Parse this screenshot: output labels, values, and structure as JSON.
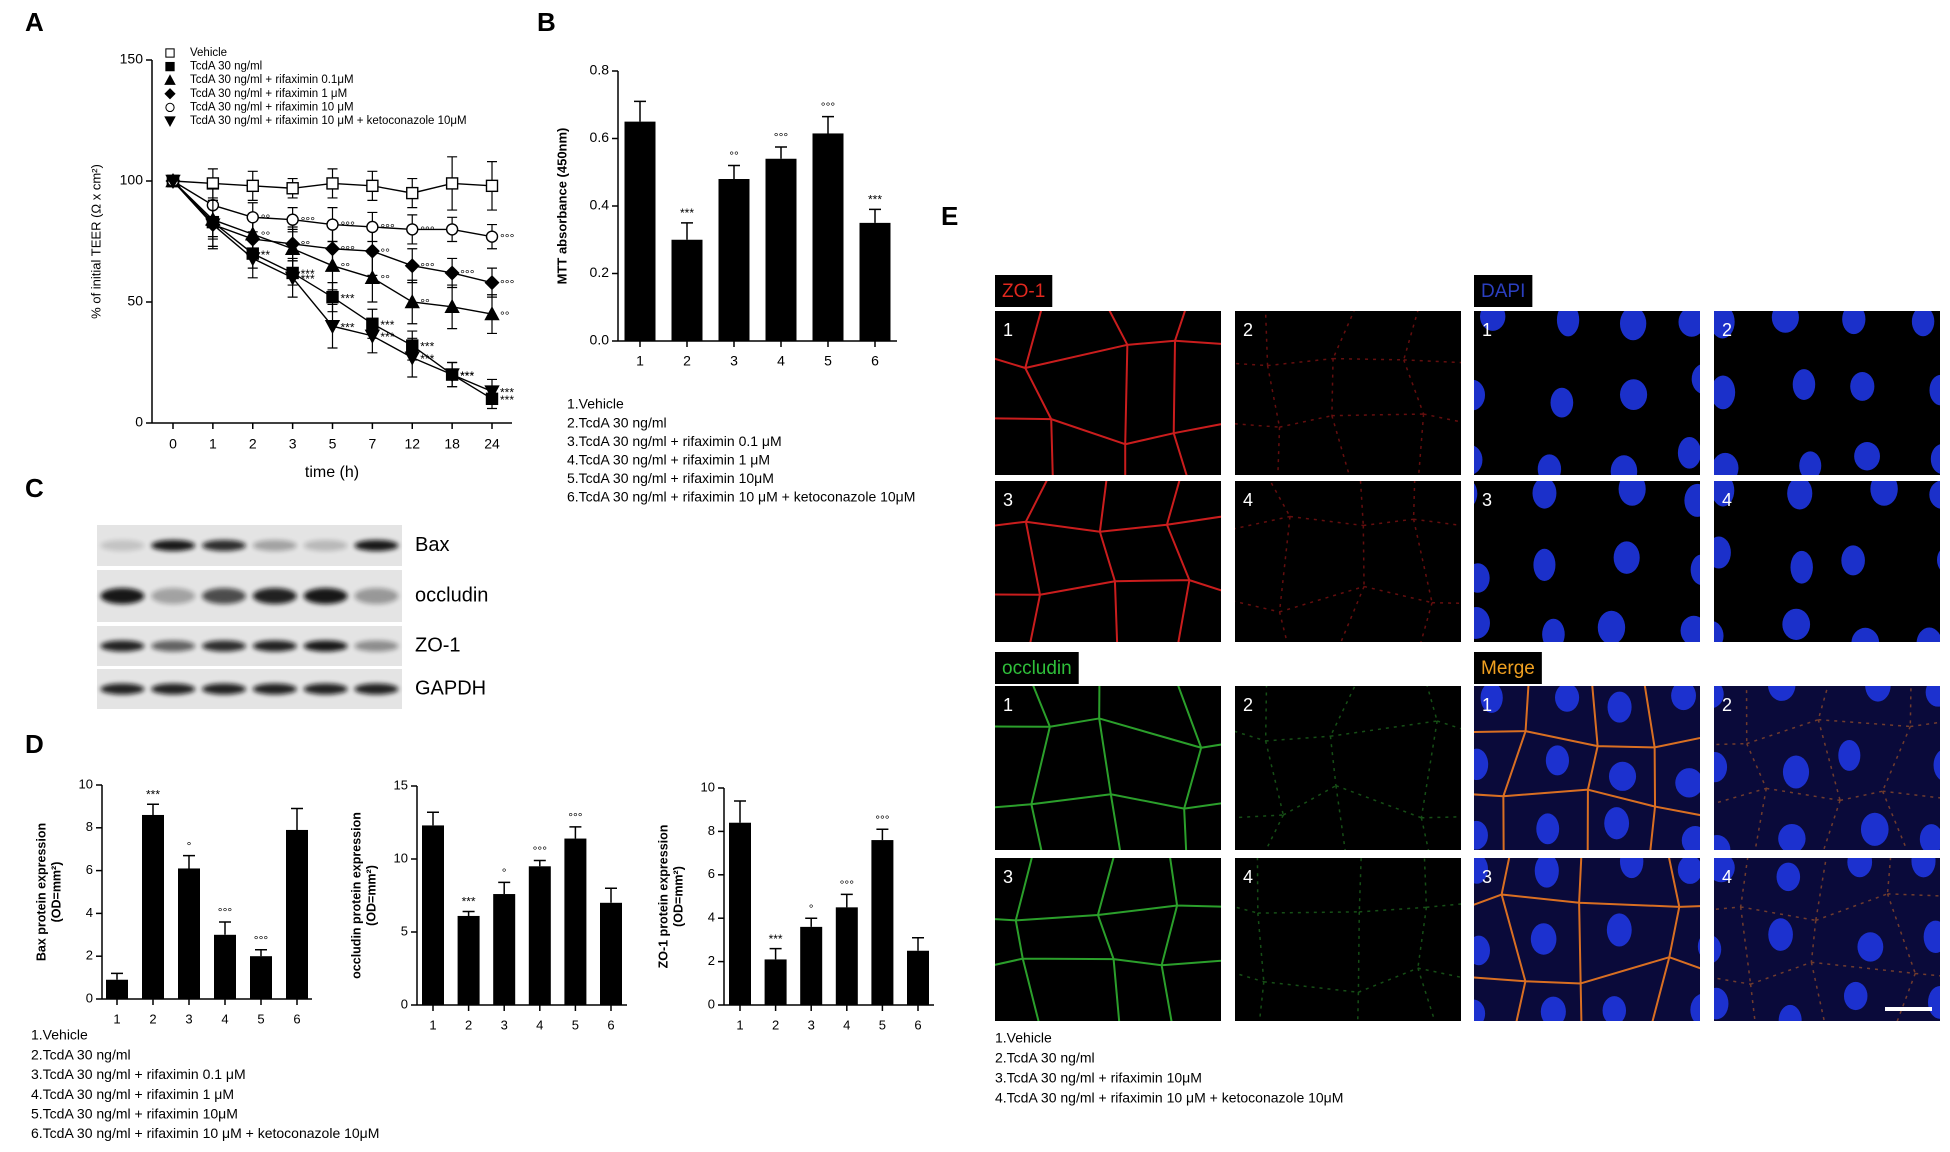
{
  "figure": {
    "panel_labels": [
      "A",
      "B",
      "C",
      "D",
      "E"
    ],
    "blot": {
      "labels": [
        "Bax",
        "occludin",
        "ZO-1",
        "GAPDH"
      ]
    },
    "micrographs": {
      "channels": [
        "ZO-1",
        "DAPI",
        "occludin",
        "Merge"
      ],
      "tile_labels": [
        "1",
        "2",
        "3",
        "4"
      ],
      "notes": [
        "1.Vehicle",
        "2.TcdA 30 ng/ml",
        "3.TcdA 30 ng/ml + rifaximin 10μM",
        "4.TcdA 30 ng/ml + rifaximin 10 μM + ketoconazole  10μM"
      ]
    },
    "d_notes": [
      "1.Vehicle",
      "2.TcdA 30 ng/ml",
      "3.TcdA 30 ng/ml + rifaximin 0.1 μM",
      "4.TcdA 30 ng/ml + rifaximin 1 μM",
      "5.TcdA 30 ng/ml + rifaximin 10μM",
      "6.TcdA 30 ng/ml + rifaximin 10 μM + ketoconazole  10μM"
    ]
  },
  "chart_data": [
    {
      "type": "line",
      "xlabel": "time (h)",
      "ylabel": "% of initial TEER (Ω x cm²)",
      "categories": [
        "0",
        "1",
        "2",
        "3",
        "5",
        "7",
        "12",
        "18",
        "24"
      ],
      "ylim": [
        0,
        150
      ],
      "yticks": [
        0,
        50,
        100,
        150
      ],
      "legend": "top-left",
      "series": [
        {
          "name": "Vehicle",
          "color": "#000000",
          "marker": "square-open",
          "values": [
            100,
            99,
            98,
            97,
            99,
            98,
            95,
            99,
            98
          ],
          "errors": [
            0,
            6,
            6,
            4,
            6,
            6,
            6,
            11,
            10
          ],
          "annotations": [
            null,
            null,
            null,
            null,
            null,
            null,
            null,
            null,
            null
          ]
        },
        {
          "name": "TcdA 30 ng/ml",
          "color": "#000000",
          "marker": "square",
          "values": [
            100,
            83,
            70,
            62,
            52,
            41,
            32,
            20,
            10
          ],
          "errors": [
            0,
            6,
            6,
            5,
            6,
            6,
            6,
            5,
            4
          ],
          "annotations": [
            null,
            null,
            "**",
            "***",
            "***",
            "***",
            "***",
            "***",
            "***"
          ]
        },
        {
          "name": "TcdA 30 ng/ml + rifaximin  0.1μM",
          "color": "#000000",
          "marker": "triangle",
          "values": [
            100,
            84,
            78,
            72,
            65,
            60,
            50,
            48,
            45
          ],
          "errors": [
            0,
            8,
            8,
            8,
            10,
            10,
            9,
            9,
            8
          ],
          "annotations": [
            null,
            null,
            "°°",
            null,
            "°°",
            "°°",
            "°°",
            null,
            "°°"
          ]
        },
        {
          "name": "TcdA 30 ng/ml + rifaximin  1 μM",
          "color": "#000000",
          "marker": "diamond",
          "values": [
            100,
            82,
            76,
            74,
            72,
            71,
            65,
            62,
            58
          ],
          "errors": [
            0,
            9,
            8,
            7,
            9,
            10,
            7,
            6,
            6
          ],
          "annotations": [
            null,
            null,
            null,
            "°°",
            "°°°",
            "°°",
            "°°°",
            "°°°",
            "°°°"
          ]
        },
        {
          "name": "TcdA 30 ng/ml + rifaximin  10 μM",
          "color": "#000000",
          "marker": "circle-open",
          "values": [
            100,
            90,
            85,
            84,
            82,
            81,
            80,
            80,
            77
          ],
          "errors": [
            0,
            7,
            6,
            5,
            7,
            6,
            6,
            5,
            5
          ],
          "annotations": [
            null,
            null,
            "°°",
            "°°°",
            "°°°",
            "°°°",
            "°°°",
            null,
            "°°°"
          ]
        },
        {
          "name": "TcdA 30 ng/ml + rifaximin 10 μM + ketoconazole 10μM",
          "color": "#000000",
          "marker": "triangle-down",
          "values": [
            100,
            82,
            68,
            60,
            40,
            36,
            27,
            20,
            13
          ],
          "errors": [
            0,
            10,
            8,
            8,
            9,
            7,
            8,
            5,
            5
          ],
          "annotations": [
            null,
            null,
            null,
            "***",
            "***",
            "***",
            "***",
            "***",
            "***"
          ]
        }
      ]
    },
    {
      "type": "bar",
      "ylabel": "MTT absorbance (450nm)",
      "color": "#000000",
      "categories": [
        "1",
        "2",
        "3",
        "4",
        "5",
        "6"
      ],
      "values": [
        0.65,
        0.3,
        0.48,
        0.54,
        0.615,
        0.35
      ],
      "errors": [
        0.06,
        0.05,
        0.04,
        0.035,
        0.05,
        0.04
      ],
      "annotations": [
        null,
        "***",
        "°°",
        "°°°",
        "°°°",
        "***"
      ],
      "ylim": [
        0,
        0.8
      ],
      "yticks": [
        {
          "value": 0,
          "label": "0.0"
        },
        0.2,
        0.4,
        0.6,
        0.8
      ],
      "notes": [
        "1.Vehicle",
        "2.TcdA 30 ng/ml",
        "3.TcdA 30 ng/ml + rifaximin 0.1 μM",
        "4.TcdA 30 ng/ml + rifaximin 1 μM",
        "5.TcdA 30 ng/ml + rifaximin 10μM",
        "6.TcdA 30 ng/ml + rifaximin 10 μM + ketoconazole  10μM"
      ]
    },
    {
      "type": "bar",
      "ylabel": "Bax protein expression",
      "ylabel_unit": "(OD=mm²)",
      "color": "#000000",
      "categories": [
        "1",
        "2",
        "3",
        "4",
        "5",
        "6"
      ],
      "values": [
        0.9,
        8.6,
        6.1,
        3.0,
        2.0,
        7.9
      ],
      "errors": [
        0.3,
        0.5,
        0.6,
        0.6,
        0.3,
        1.0
      ],
      "annotations": [
        null,
        "***",
        "°",
        "°°°",
        "°°°",
        null
      ],
      "ylim": [
        0,
        10
      ],
      "yticks": [
        0,
        2,
        4,
        6,
        8,
        10
      ]
    },
    {
      "type": "bar",
      "ylabel": "occludin protein expression",
      "ylabel_unit": "(OD=mm²)",
      "color": "#000000",
      "categories": [
        "1",
        "2",
        "3",
        "4",
        "5",
        "6"
      ],
      "values": [
        12.3,
        6.1,
        7.6,
        9.5,
        11.4,
        7.0
      ],
      "errors": [
        0.9,
        0.3,
        0.8,
        0.4,
        0.8,
        1.0
      ],
      "annotations": [
        null,
        "***",
        "°",
        "°°°",
        "°°°",
        null
      ],
      "ylim": [
        0,
        15
      ],
      "yticks": [
        0,
        5,
        10,
        15
      ]
    },
    {
      "type": "bar",
      "ylabel": "ZO-1 protein expression",
      "ylabel_unit": "(OD=mm²)",
      "color": "#000000",
      "categories": [
        "1",
        "2",
        "3",
        "4",
        "5",
        "6"
      ],
      "values": [
        8.4,
        2.1,
        3.6,
        4.5,
        7.6,
        2.5
      ],
      "errors": [
        1.0,
        0.5,
        0.4,
        0.6,
        0.5,
        0.6
      ],
      "annotations": [
        null,
        "***",
        "°",
        "°°°",
        "°°°",
        null
      ],
      "ylim": [
        0,
        10
      ],
      "yticks": [
        0,
        2,
        4,
        6,
        8,
        10
      ]
    }
  ]
}
